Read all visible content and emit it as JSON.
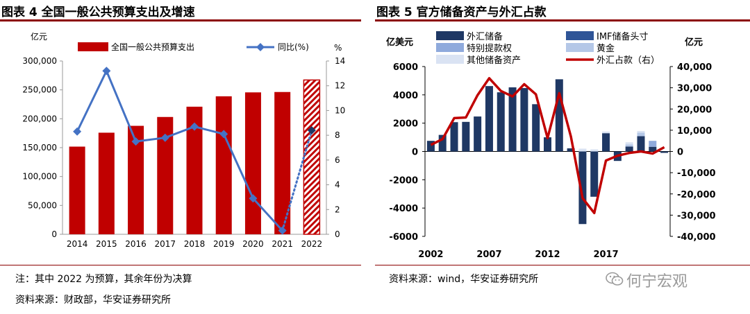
{
  "left": {
    "title": "图表 4 全国一般公共预算支出及增速",
    "note": "注：其中 2022 为预算，其余年份为决算",
    "source": "资料来源：财政部，华安证券研究所"
  },
  "right": {
    "title": "图表 5 官方储备资产与外汇占款",
    "source": "资料来源：wind，华安证券研究所"
  },
  "watermark": "何宁宏观",
  "colors": {
    "bar_red": "#c00000",
    "line_blue": "#4472c4",
    "navy": "#1f3864",
    "rule": "#8b0000"
  },
  "chart_data": [
    {
      "type": "bar",
      "title": "图表 4 全国一般公共预算支出及增速",
      "categories": [
        "2014",
        "2015",
        "2016",
        "2017",
        "2018",
        "2019",
        "2020",
        "2021",
        "2022"
      ],
      "y_left_unit": "亿元",
      "y_right_unit": "%",
      "ylim_left": [
        0,
        300000
      ],
      "yticks_left": [
        "0",
        "50,000",
        "100,000",
        "150,000",
        "200,000",
        "250,000",
        "300,000"
      ],
      "ylim_right": [
        0,
        14
      ],
      "yticks_right": [
        "0",
        "2",
        "4",
        "6",
        "8",
        "10",
        "12",
        "14"
      ],
      "series": [
        {
          "name": "全国一般公共预算支出",
          "type": "bar",
          "axis": "left",
          "values": [
            151786,
            175878,
            187755,
            203085,
            220904,
            238858,
            245679,
            246322,
            267125
          ],
          "hatched_last": true
        },
        {
          "name": "同比(%)",
          "type": "line",
          "axis": "right",
          "values": [
            8.3,
            13.2,
            7.5,
            7.8,
            8.7,
            8.1,
            2.9,
            0.3,
            8.4
          ],
          "dotted_last_segment": true
        }
      ]
    },
    {
      "type": "bar",
      "title": "图表 5 官方储备资产与外汇占款",
      "x": [
        2002,
        2003,
        2004,
        2005,
        2006,
        2007,
        2008,
        2009,
        2010,
        2011,
        2012,
        2013,
        2014,
        2015,
        2016,
        2017,
        2018,
        2019,
        2020,
        2021,
        2022
      ],
      "xticks": [
        "2002",
        "2007",
        "2012",
        "2017"
      ],
      "y_left_unit": "亿美元",
      "y_right_unit": "亿元",
      "ylim_left": [
        -6000,
        6000
      ],
      "yticks_left": [
        "-6000",
        "-4000",
        "-2000",
        "0",
        "2000",
        "4000",
        "6000"
      ],
      "ylim_right": [
        -40000,
        40000
      ],
      "yticks_right": [
        "-40,000",
        "-30,000",
        "-20,000",
        "-10,000",
        "0",
        "10,000",
        "20,000",
        "30,000",
        "40,000"
      ],
      "series": [
        {
          "name": "外汇储备",
          "type": "bar",
          "axis": "left",
          "color": "#1f3864",
          "values": [
            750,
            1170,
            2070,
            2090,
            2470,
            4620,
            4180,
            4530,
            4480,
            3340,
            1000,
            5100,
            220,
            -5130,
            -3200,
            1290,
            -670,
            350,
            1080,
            330,
            -100
          ]
        },
        {
          "name": "IMF储备头寸",
          "type": "bar",
          "axis": "left",
          "color": "#2f5597",
          "values": [
            0,
            0,
            0,
            0,
            0,
            0,
            0,
            0,
            0,
            0,
            0,
            0,
            0,
            0,
            0,
            0,
            0,
            0,
            0,
            0,
            0
          ]
        },
        {
          "name": "特别提款权",
          "type": "bar",
          "axis": "left",
          "color": "#8faadc",
          "values": [
            0,
            0,
            0,
            0,
            0,
            0,
            0,
            0,
            0,
            0,
            0,
            0,
            0,
            0,
            0,
            0,
            0,
            0,
            0,
            420,
            0
          ]
        },
        {
          "name": "黄金",
          "type": "bar",
          "axis": "left",
          "color": "#b4c7e7",
          "values": [
            0,
            0,
            0,
            0,
            0,
            0,
            0,
            0,
            0,
            0,
            0,
            0,
            0,
            0,
            0,
            0,
            0,
            150,
            250,
            0,
            0
          ]
        },
        {
          "name": "其他储备资产",
          "type": "bar",
          "axis": "left",
          "color": "#dae3f3",
          "values": [
            0,
            0,
            0,
            0,
            0,
            0,
            0,
            0,
            0,
            0,
            0,
            0,
            0,
            200,
            150,
            120,
            0,
            150,
            120,
            0,
            0
          ]
        },
        {
          "name": "外汇占款（右）",
          "type": "line",
          "axis": "right",
          "color": "#c00000",
          "values": [
            3100,
            5800,
            15700,
            16000,
            26500,
            34500,
            28500,
            25900,
            31700,
            26900,
            6300,
            27500,
            7000,
            -22000,
            -29000,
            -4300,
            -2000,
            -700,
            0,
            -1000,
            2000
          ]
        }
      ]
    }
  ]
}
